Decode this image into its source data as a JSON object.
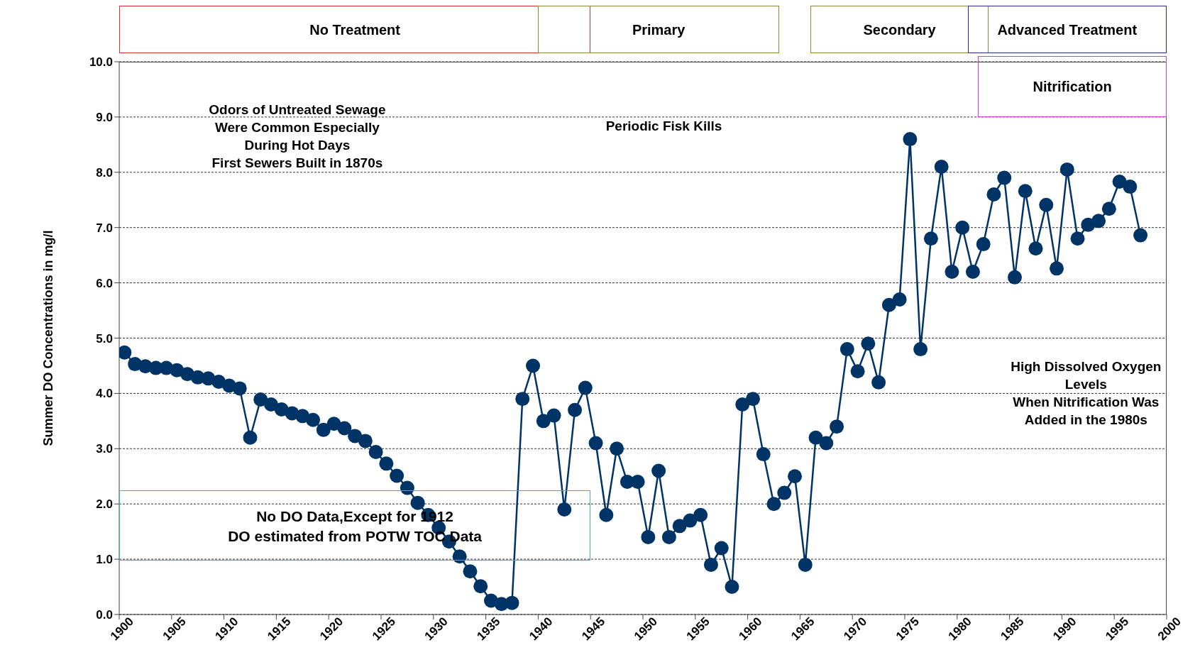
{
  "chart_data": {
    "type": "line",
    "ylabel": "Summer DO Concentrations  in mg/l",
    "x": [
      1900.5,
      1901.5,
      1902.5,
      1903.5,
      1904.5,
      1905.5,
      1906.5,
      1907.5,
      1908.5,
      1909.5,
      1910.5,
      1911.5,
      1912.5,
      1913.5,
      1914.5,
      1915.5,
      1916.5,
      1917.5,
      1918.5,
      1919.5,
      1920.5,
      1921.5,
      1922.5,
      1923.5,
      1924.5,
      1925.5,
      1926.5,
      1927.5,
      1928.5,
      1929.5,
      1930.5,
      1931.5,
      1932.5,
      1933.5,
      1934.5,
      1935.5,
      1936.5,
      1937.5,
      1938.5,
      1939.5,
      1940.5,
      1941.5,
      1942.5,
      1943.5,
      1944.5,
      1945.5,
      1946.5,
      1947.5,
      1948.5,
      1949.5,
      1950.5,
      1951.5,
      1952.5,
      1953.5,
      1954.5,
      1955.5,
      1956.5,
      1957.5,
      1958.5,
      1959.5,
      1960.5,
      1961.5,
      1962.5,
      1963.5,
      1964.5,
      1965.5,
      1966.5,
      1967.5,
      1968.5,
      1969.5,
      1970.5,
      1971.5,
      1972.5,
      1973.5,
      1974.5,
      1975.5,
      1976.5,
      1977.5,
      1978.5,
      1979.5,
      1980.5,
      1981.5,
      1982.5,
      1983.5,
      1984.5,
      1985.5,
      1986.5,
      1987.5,
      1988.5,
      1989.5,
      1990.5,
      1991.5,
      1992.5,
      1993.5,
      1994.5,
      1995.5,
      1996.5,
      1997.5
    ],
    "series": [
      {
        "color": "#003366",
        "values": [
          4.74,
          4.53,
          4.49,
          4.46,
          4.46,
          4.42,
          4.35,
          4.29,
          4.27,
          4.21,
          4.14,
          4.09,
          3.2,
          3.89,
          3.8,
          3.71,
          3.64,
          3.59,
          3.52,
          3.34,
          3.45,
          3.37,
          3.23,
          3.14,
          2.94,
          2.73,
          2.51,
          2.29,
          2.02,
          1.8,
          1.57,
          1.32,
          1.05,
          0.78,
          0.51,
          0.25,
          0.19,
          0.21,
          3.9,
          4.5,
          3.5,
          3.6,
          1.9,
          3.7,
          4.1,
          3.1,
          1.8,
          3.0,
          2.4,
          2.4,
          1.4,
          2.6,
          1.4,
          1.6,
          1.7,
          1.8,
          0.9,
          1.2,
          0.5,
          3.8,
          3.9,
          2.9,
          2.0,
          2.2,
          2.5,
          0.9,
          3.2,
          3.1,
          3.4,
          4.8,
          4.4,
          4.9,
          4.2,
          5.6,
          5.7,
          8.6,
          4.8,
          6.8,
          8.1,
          6.2,
          7.0,
          6.2,
          6.7,
          7.6,
          7.9,
          6.1,
          7.66,
          6.62,
          7.41,
          6.26,
          8.05,
          6.8,
          7.05,
          7.12,
          7.34,
          7.83,
          7.74,
          6.86
        ]
      }
    ],
    "xlim": [
      1900,
      2000
    ],
    "xticks": [
      1900,
      1905,
      1910,
      1915,
      1920,
      1925,
      1930,
      1935,
      1940,
      1945,
      1950,
      1955,
      1960,
      1965,
      1970,
      1975,
      1980,
      1985,
      1990,
      1995,
      2000
    ],
    "ylim": [
      0,
      10
    ],
    "yticks": [
      {
        "value": 0,
        "label": "0.0"
      },
      {
        "value": 1,
        "label": "1.0"
      },
      {
        "value": 2,
        "label": "2.0"
      },
      {
        "value": 3,
        "label": "3.0"
      },
      {
        "value": 4,
        "label": "4.0"
      },
      {
        "value": 5,
        "label": "5.0"
      },
      {
        "value": 6,
        "label": "6.0"
      },
      {
        "value": 7,
        "label": "7.0"
      },
      {
        "value": 8,
        "label": "8.0"
      },
      {
        "value": 9,
        "label": "9.0"
      },
      {
        "value": 10,
        "label": "10.0"
      }
    ],
    "grid": "y",
    "marker": "circle",
    "line_style": "solid",
    "legend": false,
    "annotations": [
      "No Treatment",
      "Primary",
      "Secondary",
      "Advanced Treatment",
      "Nitrification",
      "Odors of Untreated Sewage\nWere Common Especially\nDuring Hot Days\nFirst Sewers Built in 1870s",
      "Periodic Fisk Kills",
      "High Dissolved Oxygen\nLevels\nWhen Nitrification Was\nAdded in the 1980s",
      "No DO Data,Except  for 1912\nDO estimated from POTW TOC Data"
    ]
  }
}
